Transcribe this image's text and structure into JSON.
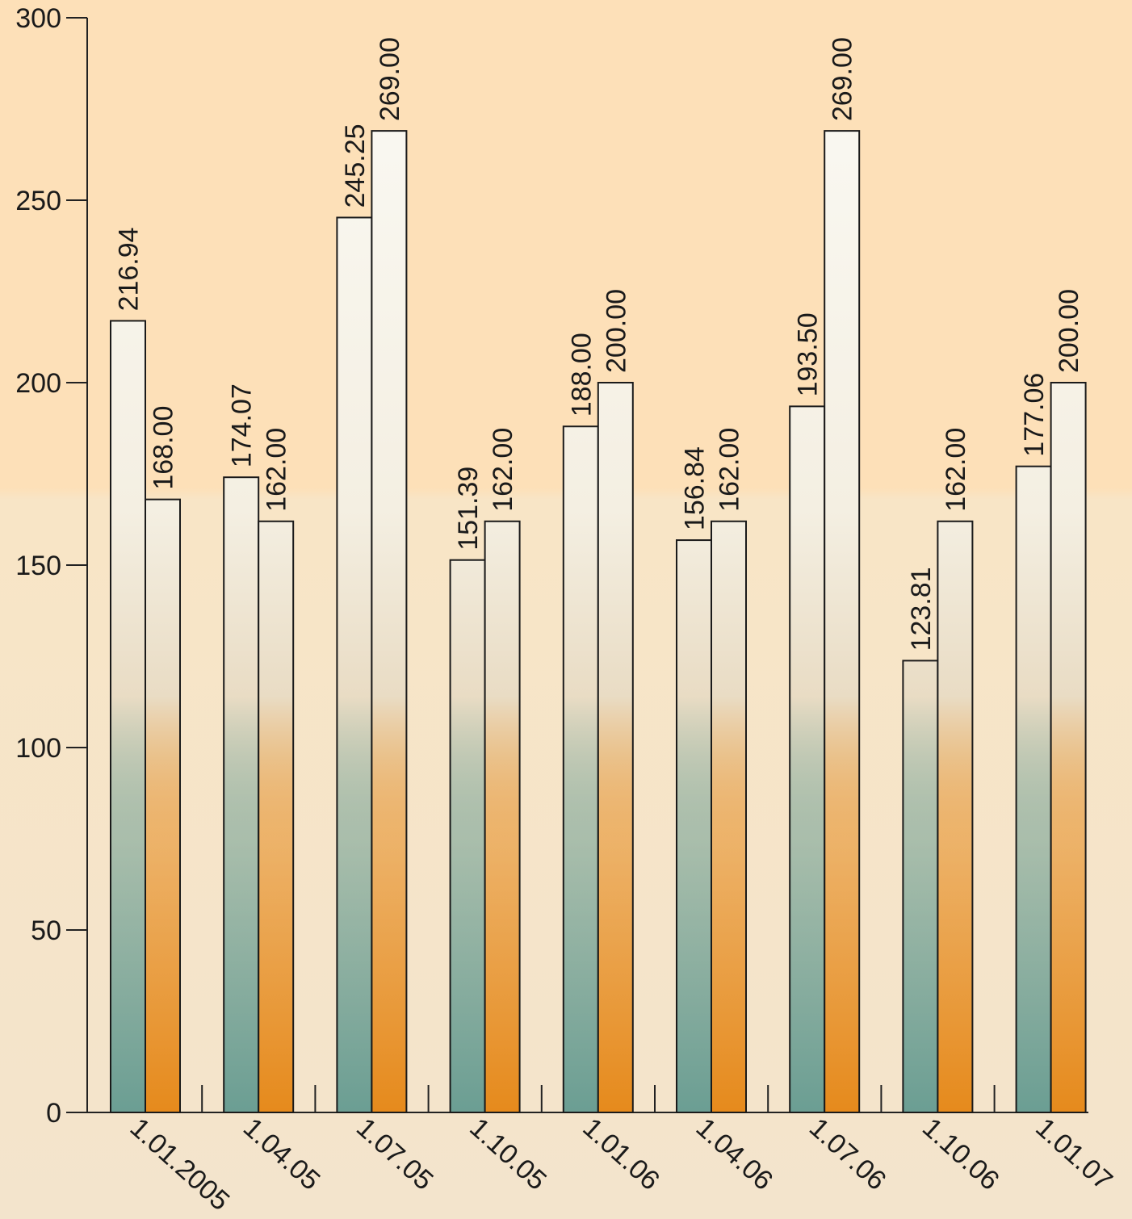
{
  "chart_data": {
    "type": "bar",
    "categories": [
      "1.01.2005",
      "1.04.05",
      "1.07.05",
      "1.10.05",
      "1.01.06",
      "1.04.06",
      "1.07.06",
      "1.10.06",
      "1.01.07"
    ],
    "series": [
      {
        "color": "#6b9e93",
        "values": [
          216.94,
          174.07,
          245.25,
          151.39,
          188.0,
          156.84,
          193.5,
          123.81,
          177.06
        ],
        "value_labels": [
          "216.94",
          "174.07",
          "245.25",
          "151.39",
          "188.00",
          "156.84",
          "193.50",
          "123.81",
          "177.06"
        ]
      },
      {
        "color": "#e68a1c",
        "values": [
          168,
          162,
          269,
          162,
          200,
          162,
          269,
          162,
          200
        ],
        "value_labels": [
          "168.00",
          "162.00",
          "269.00",
          "162.00",
          "200.00",
          "162.00",
          "269.00",
          "162.00",
          "200.00"
        ]
      }
    ],
    "ylim": [
      0,
      300
    ],
    "yticks": [
      0,
      50,
      100,
      150,
      200,
      250,
      300
    ]
  }
}
